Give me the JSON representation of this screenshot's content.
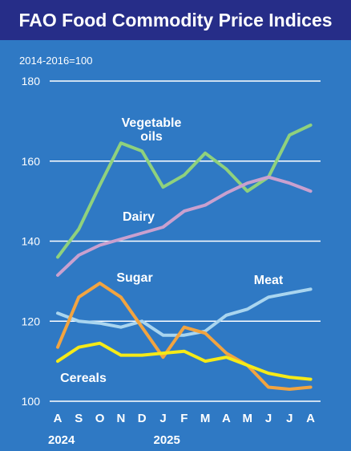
{
  "chart_data": {
    "type": "line",
    "title": "FAO Food Commodity Price Indices",
    "subtitle": "2014-2016=100",
    "x": [
      "A",
      "S",
      "O",
      "N",
      "D",
      "J",
      "F",
      "M",
      "A",
      "M",
      "J",
      "J",
      "A"
    ],
    "year_labels": [
      {
        "label": "2024",
        "index": 0
      },
      {
        "label": "2025",
        "index": 5
      }
    ],
    "ylim": [
      100,
      180
    ],
    "yticks": [
      100,
      120,
      140,
      160,
      180
    ],
    "grid": true,
    "series": [
      {
        "name": "Vegetable oils",
        "label_lines": [
          "Vegetable",
          "oils"
        ],
        "color": "#8fd17d",
        "values": [
          136,
          143,
          154,
          164.5,
          162.5,
          153.5,
          156.5,
          162,
          158,
          152.5,
          156,
          166.5,
          169
        ]
      },
      {
        "name": "Dairy",
        "label_lines": [
          "Dairy"
        ],
        "color": "#c9a0cf",
        "values": [
          131.5,
          136.5,
          139,
          140.5,
          142,
          143.5,
          147.5,
          149,
          152,
          154.5,
          156,
          154.5,
          152.5
        ]
      },
      {
        "name": "Meat",
        "label_lines": [
          "Meat"
        ],
        "color": "#a9d5ef",
        "values": [
          122,
          120,
          119.5,
          118.5,
          120,
          116.5,
          116.5,
          117.5,
          121.5,
          123,
          126,
          127,
          128
        ]
      },
      {
        "name": "Sugar",
        "label_lines": [
          "Sugar"
        ],
        "color": "#f2a440",
        "values": [
          113.5,
          126,
          129.5,
          126,
          118.5,
          111,
          118.5,
          117,
          112,
          109,
          103.5,
          103,
          103.5
        ]
      },
      {
        "name": "Cereals",
        "label_lines": [
          "Cereals"
        ],
        "color": "#f5ea18",
        "values": [
          110,
          113.5,
          114.5,
          111.5,
          111.5,
          112,
          112.5,
          110,
          111,
          109,
          107,
          106,
          105.5
        ]
      }
    ]
  }
}
